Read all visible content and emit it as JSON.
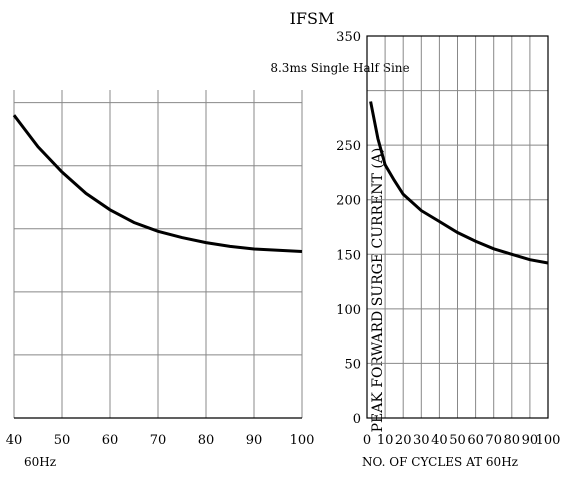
{
  "chart_data": [
    {
      "type": "line",
      "title": "IFSM",
      "note": "8.3ms Single Half Sine",
      "ylabel": "PEAK FORWARD SURGE CURRENT (A)",
      "ylim": [
        0,
        350
      ],
      "yticks": [
        0,
        50,
        100,
        150,
        200,
        250,
        300,
        350
      ],
      "y_tick_labels": [
        "0",
        "50",
        "100",
        "150",
        "200",
        "250",
        "",
        "350"
      ],
      "xlim": [
        0,
        100
      ],
      "xticks": [
        0,
        10,
        20,
        30,
        40,
        50,
        60,
        70,
        80,
        90,
        100
      ],
      "x_tick_labels": [
        "0",
        "10",
        "20",
        "30",
        "40",
        "50",
        "60",
        "70",
        "80",
        "90",
        "100"
      ],
      "xlabel": "NO. OF CYCLES AT 60Hz",
      "grid": true,
      "series": [
        {
          "x": [
            2,
            6,
            10,
            15,
            20,
            30,
            40,
            50,
            60,
            70,
            80,
            90,
            100
          ],
          "y": [
            290,
            256,
            232,
            218,
            205,
            190,
            180,
            170,
            162,
            155,
            150,
            145,
            142
          ]
        }
      ]
    },
    {
      "type": "line",
      "ylim": [
        0,
        260
      ],
      "xlim": [
        40,
        100
      ],
      "xticks": [
        40,
        50,
        60,
        70,
        80,
        90,
        100
      ],
      "x_tick_labels": [
        "40",
        "50",
        "60",
        "70",
        "80",
        "90",
        "100"
      ],
      "xlabel_fragment": "60Hz",
      "grid": true,
      "series": [
        {
          "x": [
            40,
            45,
            50,
            55,
            60,
            65,
            70,
            75,
            80,
            85,
            90,
            95,
            100
          ],
          "y": [
            240,
            215,
            195,
            178,
            165,
            155,
            148,
            143,
            139,
            136,
            134,
            133,
            132
          ]
        }
      ]
    }
  ]
}
